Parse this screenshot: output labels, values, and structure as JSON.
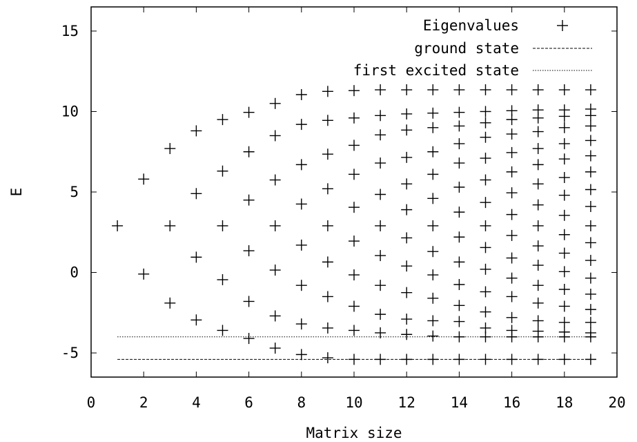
{
  "chart_data": {
    "type": "scatter",
    "title": "",
    "xlabel": "Matrix size",
    "ylabel": "E",
    "xlim": [
      0,
      20
    ],
    "ylim": [
      -6.5,
      16.5
    ],
    "xticks": [
      0,
      2,
      4,
      6,
      8,
      10,
      12,
      14,
      16,
      18,
      20
    ],
    "yticks": [
      -5,
      0,
      5,
      10,
      15
    ],
    "grid": false,
    "legend_position": "top-right",
    "legend": [
      {
        "label": "Eigenvalues",
        "style": "plus-marker"
      },
      {
        "label": "ground state",
        "style": "dashed-line"
      },
      {
        "label": "first excited state",
        "style": "dotted-line"
      }
    ],
    "series": [
      {
        "name": "Eigenvalues",
        "points": [
          [
            1,
            2.9
          ],
          [
            2,
            -0.1
          ],
          [
            2,
            5.8
          ],
          [
            3,
            -1.9
          ],
          [
            3,
            2.9
          ],
          [
            3,
            7.7
          ],
          [
            4,
            -2.95
          ],
          [
            4,
            0.95
          ],
          [
            4,
            4.9
          ],
          [
            4,
            8.8
          ],
          [
            5,
            -3.6
          ],
          [
            5,
            -0.45
          ],
          [
            5,
            2.9
          ],
          [
            5,
            6.3
          ],
          [
            5,
            9.5
          ],
          [
            6,
            -4.1
          ],
          [
            6,
            -1.8
          ],
          [
            6,
            1.35
          ],
          [
            6,
            4.5
          ],
          [
            6,
            7.5
          ],
          [
            6,
            9.95
          ],
          [
            7,
            -4.7
          ],
          [
            7,
            -2.7
          ],
          [
            7,
            0.15
          ],
          [
            7,
            2.9
          ],
          [
            7,
            5.75
          ],
          [
            7,
            8.5
          ],
          [
            7,
            10.5
          ],
          [
            8,
            -5.1
          ],
          [
            8,
            -3.2
          ],
          [
            8,
            -0.8
          ],
          [
            8,
            1.7
          ],
          [
            8,
            4.25
          ],
          [
            8,
            6.7
          ],
          [
            8,
            9.2
          ],
          [
            8,
            11.05
          ],
          [
            9,
            -5.3
          ],
          [
            9,
            -3.45
          ],
          [
            9,
            -1.5
          ],
          [
            9,
            0.65
          ],
          [
            9,
            2.9
          ],
          [
            9,
            5.2
          ],
          [
            9,
            7.35
          ],
          [
            9,
            9.45
          ],
          [
            9,
            11.25
          ],
          [
            10,
            -5.4
          ],
          [
            10,
            -3.6
          ],
          [
            10,
            -2.1
          ],
          [
            10,
            -0.15
          ],
          [
            10,
            1.95
          ],
          [
            10,
            4.05
          ],
          [
            10,
            6.1
          ],
          [
            10,
            7.9
          ],
          [
            10,
            9.6
          ],
          [
            10,
            11.3
          ],
          [
            11,
            -5.4
          ],
          [
            11,
            -3.75
          ],
          [
            11,
            -2.6
          ],
          [
            11,
            -0.8
          ],
          [
            11,
            1.05
          ],
          [
            11,
            2.9
          ],
          [
            11,
            4.85
          ],
          [
            11,
            6.8
          ],
          [
            11,
            8.55
          ],
          [
            11,
            9.75
          ],
          [
            11,
            11.35
          ],
          [
            12,
            -5.4
          ],
          [
            12,
            -3.85
          ],
          [
            12,
            -2.9
          ],
          [
            12,
            -1.25
          ],
          [
            12,
            0.4
          ],
          [
            12,
            2.15
          ],
          [
            12,
            3.9
          ],
          [
            12,
            5.5
          ],
          [
            12,
            7.15
          ],
          [
            12,
            8.85
          ],
          [
            12,
            9.85
          ],
          [
            12,
            11.35
          ],
          [
            13,
            -5.4
          ],
          [
            13,
            -3.95
          ],
          [
            13,
            -3.0
          ],
          [
            13,
            -1.6
          ],
          [
            13,
            -0.15
          ],
          [
            13,
            1.3
          ],
          [
            13,
            2.9
          ],
          [
            13,
            4.6
          ],
          [
            13,
            6.1
          ],
          [
            13,
            7.5
          ],
          [
            13,
            9.0
          ],
          [
            13,
            9.9
          ],
          [
            13,
            11.35
          ],
          [
            14,
            -5.4
          ],
          [
            14,
            -4.0
          ],
          [
            14,
            -3.05
          ],
          [
            14,
            -2.05
          ],
          [
            14,
            -0.75
          ],
          [
            14,
            0.65
          ],
          [
            14,
            2.2
          ],
          [
            14,
            3.75
          ],
          [
            14,
            5.3
          ],
          [
            14,
            6.8
          ],
          [
            14,
            8.0
          ],
          [
            14,
            9.1
          ],
          [
            14,
            9.95
          ],
          [
            14,
            11.35
          ],
          [
            15,
            -5.4
          ],
          [
            15,
            -4.0
          ],
          [
            15,
            -3.45
          ],
          [
            15,
            -2.45
          ],
          [
            15,
            -1.2
          ],
          [
            15,
            0.2
          ],
          [
            15,
            1.55
          ],
          [
            15,
            2.9
          ],
          [
            15,
            4.35
          ],
          [
            15,
            5.75
          ],
          [
            15,
            7.1
          ],
          [
            15,
            8.4
          ],
          [
            15,
            9.3
          ],
          [
            15,
            10.0
          ],
          [
            15,
            11.35
          ],
          [
            16,
            -5.4
          ],
          [
            16,
            -4.0
          ],
          [
            16,
            -3.6
          ],
          [
            16,
            -2.8
          ],
          [
            16,
            -1.5
          ],
          [
            16,
            -0.35
          ],
          [
            16,
            0.9
          ],
          [
            16,
            2.3
          ],
          [
            16,
            3.6
          ],
          [
            16,
            4.95
          ],
          [
            16,
            6.25
          ],
          [
            16,
            7.45
          ],
          [
            16,
            8.6
          ],
          [
            16,
            9.5
          ],
          [
            16,
            10.05
          ],
          [
            16,
            11.35
          ],
          [
            17,
            -5.4
          ],
          [
            17,
            -4.0
          ],
          [
            17,
            -3.65
          ],
          [
            17,
            -3.0
          ],
          [
            17,
            -1.9
          ],
          [
            17,
            -0.8
          ],
          [
            17,
            0.45
          ],
          [
            17,
            1.65
          ],
          [
            17,
            2.9
          ],
          [
            17,
            4.2
          ],
          [
            17,
            5.5
          ],
          [
            17,
            6.7
          ],
          [
            17,
            7.7
          ],
          [
            17,
            8.75
          ],
          [
            17,
            9.6
          ],
          [
            17,
            10.1
          ],
          [
            17,
            11.35
          ],
          [
            18,
            -5.4
          ],
          [
            18,
            -4.0
          ],
          [
            18,
            -3.7
          ],
          [
            18,
            -3.1
          ],
          [
            18,
            -2.1
          ],
          [
            18,
            -1.05
          ],
          [
            18,
            0.05
          ],
          [
            18,
            1.2
          ],
          [
            18,
            2.35
          ],
          [
            18,
            3.55
          ],
          [
            18,
            4.8
          ],
          [
            18,
            5.9
          ],
          [
            18,
            7.05
          ],
          [
            18,
            8.0
          ],
          [
            18,
            9.0
          ],
          [
            18,
            9.7
          ],
          [
            18,
            10.1
          ],
          [
            18,
            11.35
          ],
          [
            19,
            -5.4
          ],
          [
            19,
            -4.0
          ],
          [
            19,
            -3.75
          ],
          [
            19,
            -3.1
          ],
          [
            19,
            -2.3
          ],
          [
            19,
            -1.35
          ],
          [
            19,
            -0.35
          ],
          [
            19,
            0.75
          ],
          [
            19,
            1.85
          ],
          [
            19,
            2.9
          ],
          [
            19,
            4.1
          ],
          [
            19,
            5.15
          ],
          [
            19,
            6.25
          ],
          [
            19,
            7.25
          ],
          [
            19,
            8.2
          ],
          [
            19,
            9.1
          ],
          [
            19,
            9.75
          ],
          [
            19,
            10.15
          ],
          [
            19,
            11.35
          ]
        ]
      },
      {
        "name": "ground state",
        "x": [
          1,
          19
        ],
        "y": [
          -5.4,
          -5.4
        ]
      },
      {
        "name": "first excited state",
        "x": [
          1,
          19
        ],
        "y": [
          -4.0,
          -4.0
        ]
      }
    ]
  }
}
